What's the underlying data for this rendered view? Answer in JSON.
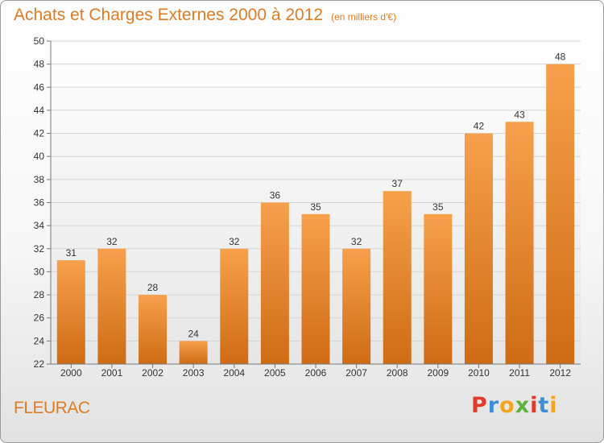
{
  "header": {
    "title": "Achats et Charges Externes 2000 à 2012",
    "unit": "(en milliers d'€)"
  },
  "footer": {
    "commune": "FLEURAC",
    "logo_letters": [
      "P",
      "r",
      "o",
      "x",
      "i",
      "t",
      "i"
    ],
    "logo_colors": [
      "#e23a2a",
      "#3a8fd6",
      "#f4a41b",
      "#5bb33c",
      "#e23a2a",
      "#3a8fd6",
      "#f4a41b"
    ]
  },
  "colors": {
    "accent": "#e07b23",
    "bar_top": "#f7a04b",
    "bar_bottom": "#cf6b14"
  },
  "chart_data": {
    "type": "bar",
    "categories": [
      "2000",
      "2001",
      "2002",
      "2003",
      "2004",
      "2005",
      "2006",
      "2007",
      "2008",
      "2009",
      "2010",
      "2011",
      "2012"
    ],
    "values": [
      31,
      32,
      28,
      24,
      32,
      36,
      35,
      32,
      37,
      35,
      42,
      43,
      48
    ],
    "ylim": [
      22,
      50
    ],
    "yticks": [
      22,
      24,
      26,
      28,
      30,
      32,
      34,
      36,
      38,
      40,
      42,
      44,
      46,
      48,
      50
    ],
    "grid": true,
    "data_labels": true
  }
}
